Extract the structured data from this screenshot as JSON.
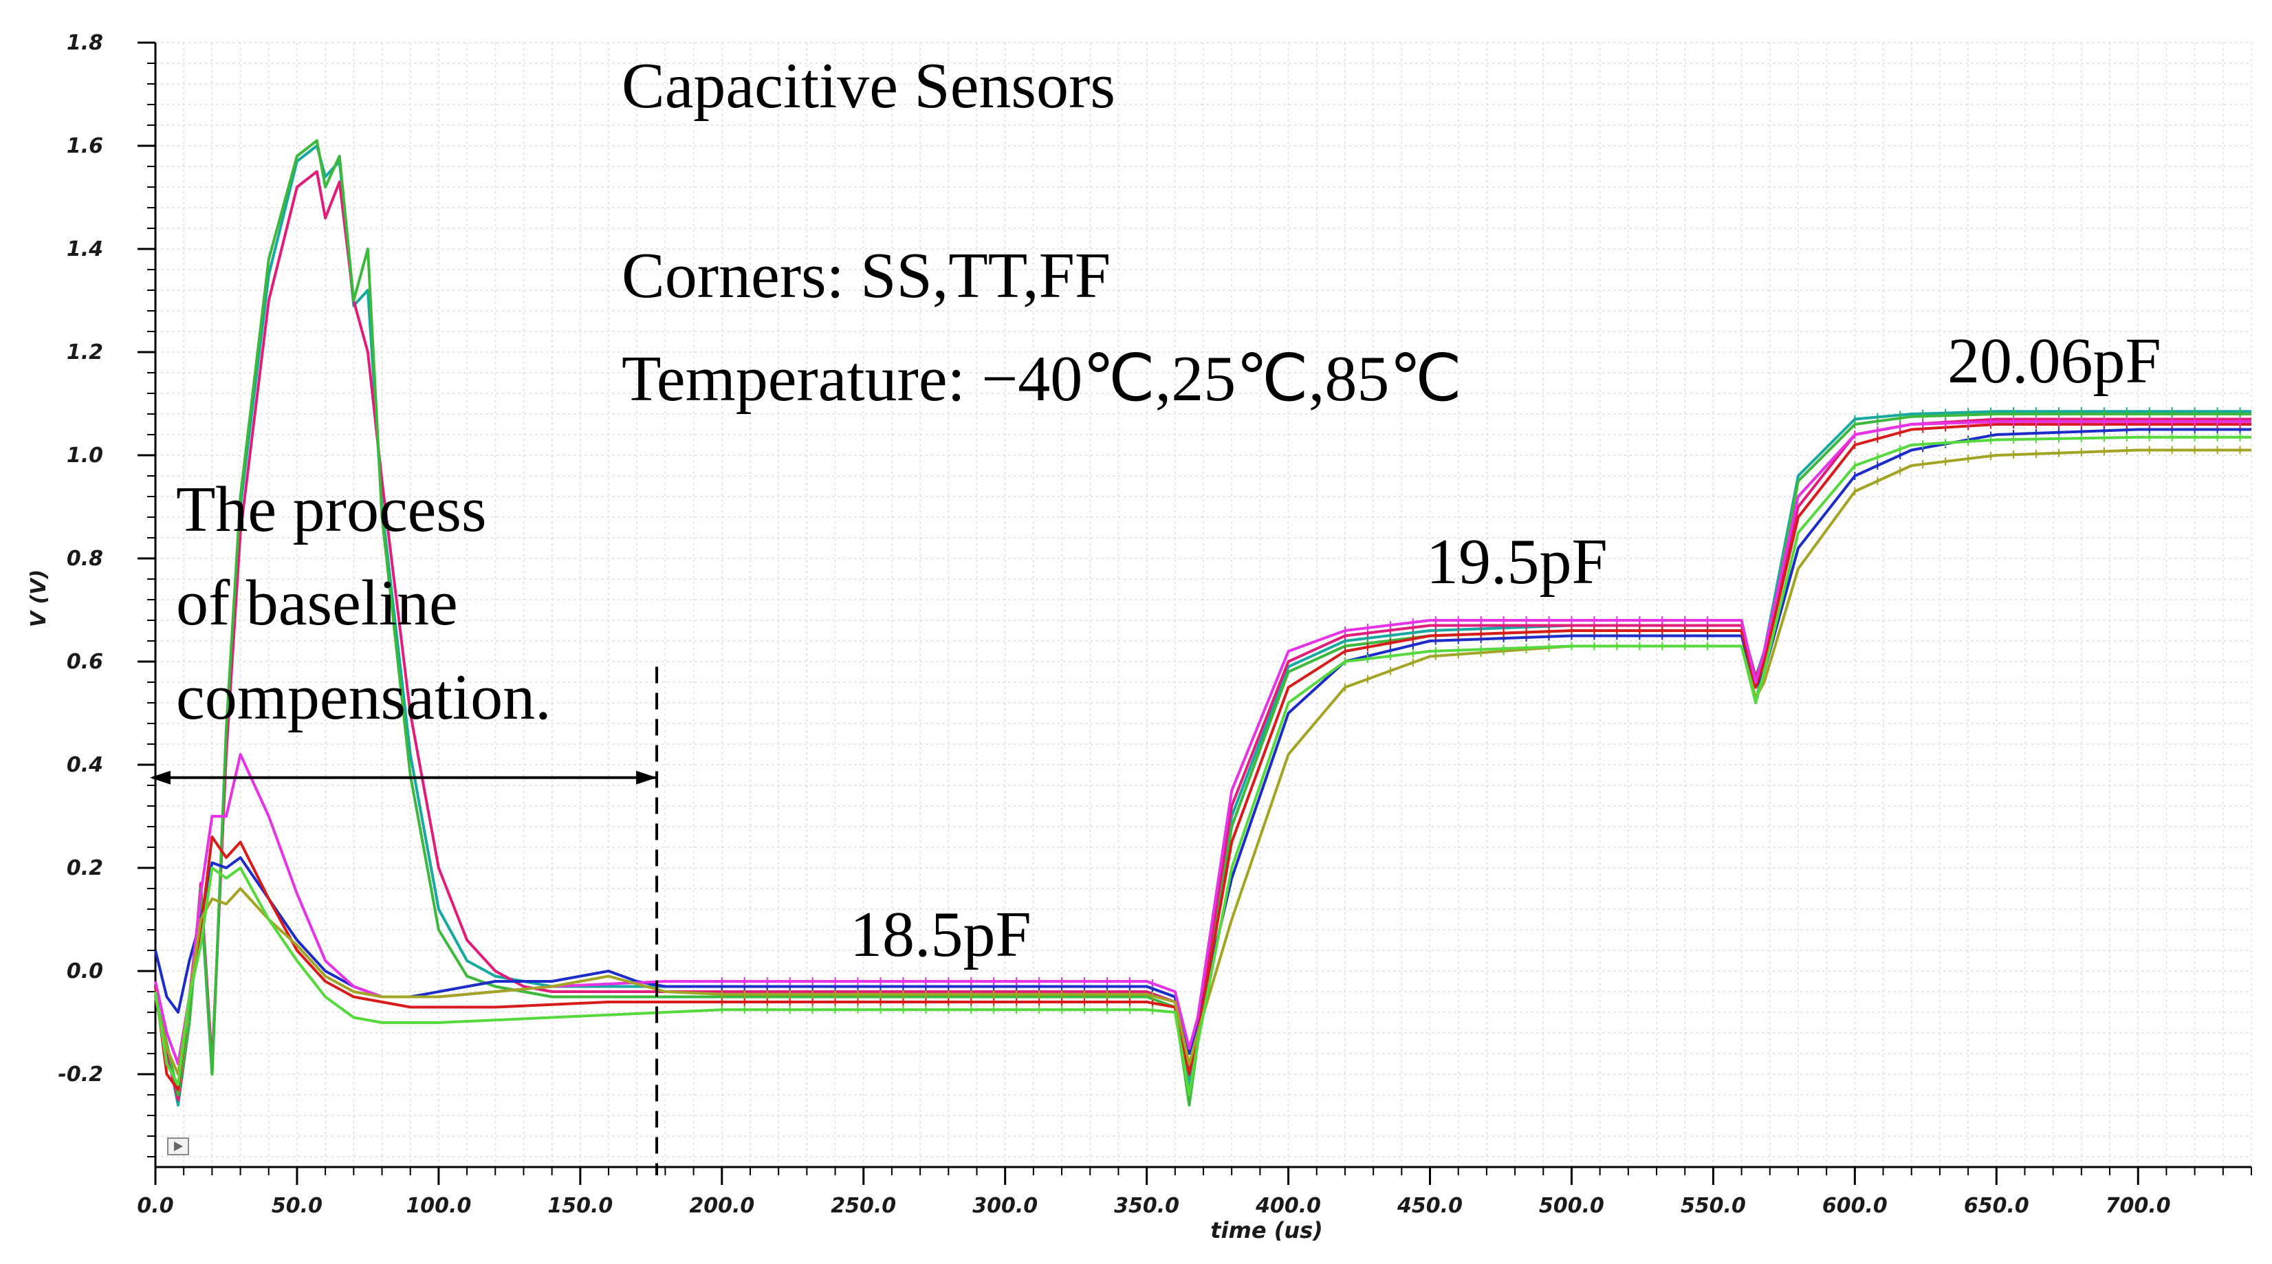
{
  "chart_data": {
    "type": "line",
    "title": "Capacitive Sensors",
    "title_color": "#c00000",
    "xlabel": "time (us)",
    "ylabel": "V (V)",
    "xlim": [
      0,
      740
    ],
    "ylim": [
      -0.38,
      1.8
    ],
    "x_ticks": [
      0,
      50,
      100,
      150,
      200,
      250,
      300,
      350,
      400,
      450,
      500,
      550,
      600,
      650,
      700
    ],
    "x_tick_labels": [
      "0.0",
      "50.0",
      "100.0",
      "150.0",
      "200.0",
      "250.0",
      "300.0",
      "350.0",
      "400.0",
      "450.0",
      "500.0",
      "550.0",
      "600.0",
      "650.0",
      "700.0"
    ],
    "y_ticks": [
      1.8,
      1.6,
      1.4,
      1.2,
      1.0,
      0.8,
      0.6,
      0.4,
      0.2,
      0.0,
      -0.2
    ],
    "y_tick_labels": [
      "1.8",
      "1.6",
      "1.4",
      "1.2",
      "1.0",
      "0.8",
      "0.6",
      "0.4",
      "0.2",
      "0.0",
      "-0.2"
    ],
    "grid": true,
    "annotations": {
      "corners": "Corners: SS,TT,FF",
      "temperature": "Temperature: −40℃,25℃,85℃",
      "baseline_1": "The process",
      "baseline_2": "of baseline",
      "baseline_3": "compensation.",
      "label_185": "18.5pF",
      "label_195": "19.5pF",
      "label_2006": "20.06pF"
    },
    "baseline_marker_x": 177,
    "baseline_arrow_y": 0.375,
    "series": [
      {
        "color": "#17a9a0",
        "x": [
          0,
          4,
          8,
          12,
          16,
          20,
          25,
          30,
          40,
          50,
          57,
          60,
          65,
          70,
          75,
          80,
          90,
          100,
          110,
          120,
          130,
          140,
          150,
          160,
          170,
          180,
          200,
          250,
          300,
          350,
          360,
          365,
          368,
          380,
          400,
          420,
          450,
          500,
          550,
          560,
          565,
          568,
          580,
          600,
          620,
          650,
          700,
          740
        ],
        "y": [
          -0.05,
          -0.15,
          -0.26,
          -0.1,
          0.15,
          -0.2,
          0.45,
          0.9,
          1.35,
          1.57,
          1.6,
          1.54,
          1.57,
          1.29,
          1.32,
          0.9,
          0.42,
          0.12,
          0.02,
          -0.01,
          -0.02,
          -0.03,
          -0.03,
          -0.03,
          -0.03,
          -0.03,
          -0.03,
          -0.03,
          -0.03,
          -0.03,
          -0.05,
          -0.22,
          -0.12,
          0.3,
          0.59,
          0.64,
          0.66,
          0.67,
          0.67,
          0.67,
          0.57,
          0.62,
          0.96,
          1.07,
          1.08,
          1.085,
          1.085,
          1.085
        ]
      },
      {
        "color": "#e01d7a",
        "x": [
          0,
          4,
          8,
          12,
          16,
          20,
          25,
          30,
          40,
          50,
          57,
          60,
          65,
          70,
          75,
          80,
          90,
          100,
          110,
          120,
          130,
          140,
          150,
          160,
          170,
          180,
          200,
          250,
          300,
          350,
          360,
          365,
          368,
          380,
          400,
          420,
          450,
          500,
          550,
          560,
          565,
          568,
          580,
          600,
          620,
          650,
          700,
          740
        ],
        "y": [
          -0.05,
          -0.16,
          -0.25,
          -0.1,
          0.17,
          -0.18,
          0.42,
          0.85,
          1.3,
          1.52,
          1.55,
          1.46,
          1.53,
          1.3,
          1.2,
          0.95,
          0.5,
          0.2,
          0.06,
          0.0,
          -0.03,
          -0.04,
          -0.04,
          -0.04,
          -0.04,
          -0.04,
          -0.04,
          -0.04,
          -0.04,
          -0.04,
          -0.06,
          -0.2,
          -0.12,
          0.32,
          0.6,
          0.65,
          0.67,
          0.67,
          0.67,
          0.67,
          0.57,
          0.61,
          0.9,
          1.04,
          1.06,
          1.07,
          1.07,
          1.07
        ]
      },
      {
        "color": "#3cb83c",
        "x": [
          0,
          4,
          8,
          12,
          16,
          20,
          25,
          30,
          40,
          50,
          57,
          60,
          65,
          70,
          75,
          80,
          90,
          100,
          110,
          120,
          130,
          140,
          150,
          160,
          170,
          180,
          200,
          250,
          300,
          350,
          360,
          365,
          368,
          380,
          400,
          420,
          450,
          500,
          550,
          560,
          565,
          568,
          580,
          600,
          620,
          650,
          700,
          740
        ],
        "y": [
          -0.05,
          -0.14,
          -0.24,
          -0.1,
          0.16,
          -0.2,
          0.47,
          0.92,
          1.38,
          1.58,
          1.61,
          1.52,
          1.58,
          1.3,
          1.4,
          0.88,
          0.38,
          0.08,
          -0.01,
          -0.03,
          -0.04,
          -0.05,
          -0.05,
          -0.05,
          -0.05,
          -0.05,
          -0.05,
          -0.05,
          -0.05,
          -0.05,
          -0.07,
          -0.26,
          -0.14,
          0.28,
          0.58,
          0.63,
          0.65,
          0.66,
          0.66,
          0.66,
          0.52,
          0.6,
          0.95,
          1.06,
          1.075,
          1.08,
          1.08,
          1.08
        ]
      },
      {
        "color": "#1c2cc8",
        "x": [
          0,
          4,
          8,
          12,
          16,
          20,
          25,
          30,
          40,
          50,
          60,
          70,
          80,
          90,
          100,
          120,
          140,
          160,
          170,
          180,
          200,
          250,
          300,
          350,
          360,
          365,
          368,
          380,
          400,
          420,
          450,
          500,
          550,
          560,
          565,
          568,
          580,
          600,
          620,
          650,
          700,
          740
        ],
        "y": [
          0.04,
          -0.05,
          -0.08,
          0.02,
          0.1,
          0.21,
          0.2,
          0.22,
          0.14,
          0.06,
          0.0,
          -0.03,
          -0.05,
          -0.05,
          -0.04,
          -0.02,
          -0.02,
          0.0,
          -0.02,
          -0.03,
          -0.03,
          -0.03,
          -0.03,
          -0.03,
          -0.05,
          -0.16,
          -0.1,
          0.18,
          0.5,
          0.6,
          0.64,
          0.65,
          0.65,
          0.65,
          0.55,
          0.58,
          0.82,
          0.96,
          1.01,
          1.04,
          1.05,
          1.05
        ]
      },
      {
        "color": "#d81b1b",
        "x": [
          0,
          4,
          8,
          12,
          16,
          20,
          25,
          30,
          40,
          50,
          60,
          70,
          80,
          90,
          100,
          120,
          140,
          160,
          180,
          200,
          250,
          300,
          350,
          360,
          365,
          368,
          380,
          400,
          420,
          450,
          500,
          550,
          560,
          565,
          568,
          580,
          600,
          620,
          650,
          700,
          740
        ],
        "y": [
          -0.03,
          -0.2,
          -0.23,
          -0.05,
          0.08,
          0.26,
          0.22,
          0.25,
          0.14,
          0.04,
          -0.02,
          -0.05,
          -0.06,
          -0.07,
          -0.07,
          -0.07,
          -0.065,
          -0.06,
          -0.06,
          -0.06,
          -0.06,
          -0.06,
          -0.06,
          -0.07,
          -0.2,
          -0.12,
          0.25,
          0.55,
          0.62,
          0.65,
          0.66,
          0.66,
          0.66,
          0.55,
          0.6,
          0.88,
          1.02,
          1.05,
          1.06,
          1.06,
          1.06
        ]
      },
      {
        "color": "#e533e5",
        "x": [
          0,
          4,
          8,
          12,
          16,
          20,
          25,
          30,
          40,
          50,
          60,
          70,
          80,
          90,
          100,
          120,
          140,
          160,
          180,
          200,
          250,
          300,
          350,
          360,
          365,
          368,
          380,
          400,
          420,
          450,
          500,
          550,
          560,
          565,
          568,
          580,
          600,
          620,
          650,
          700,
          740
        ],
        "y": [
          -0.02,
          -0.12,
          -0.18,
          -0.05,
          0.15,
          0.3,
          0.3,
          0.42,
          0.3,
          0.15,
          0.02,
          -0.03,
          -0.05,
          -0.05,
          -0.05,
          -0.04,
          -0.03,
          -0.025,
          -0.02,
          -0.02,
          -0.02,
          -0.02,
          -0.02,
          -0.04,
          -0.15,
          -0.09,
          0.35,
          0.62,
          0.66,
          0.68,
          0.68,
          0.68,
          0.68,
          0.56,
          0.62,
          0.92,
          1.04,
          1.06,
          1.065,
          1.065,
          1.065
        ]
      },
      {
        "color": "#a3a324",
        "x": [
          0,
          4,
          8,
          12,
          16,
          20,
          25,
          30,
          40,
          50,
          60,
          70,
          80,
          90,
          100,
          120,
          140,
          160,
          180,
          200,
          250,
          300,
          350,
          360,
          365,
          368,
          380,
          400,
          420,
          450,
          500,
          550,
          560,
          565,
          568,
          580,
          600,
          620,
          650,
          700,
          740
        ],
        "y": [
          -0.05,
          -0.15,
          -0.2,
          -0.05,
          0.1,
          0.14,
          0.13,
          0.16,
          0.1,
          0.05,
          -0.01,
          -0.04,
          -0.05,
          -0.05,
          -0.05,
          -0.04,
          -0.03,
          -0.01,
          -0.04,
          -0.045,
          -0.045,
          -0.045,
          -0.045,
          -0.06,
          -0.18,
          -0.12,
          0.1,
          0.42,
          0.55,
          0.61,
          0.63,
          0.63,
          0.63,
          0.53,
          0.56,
          0.78,
          0.93,
          0.98,
          1.0,
          1.01,
          1.01
        ]
      },
      {
        "color": "#55d93d",
        "x": [
          0,
          4,
          8,
          12,
          16,
          20,
          25,
          30,
          40,
          50,
          60,
          70,
          80,
          90,
          100,
          120,
          140,
          160,
          180,
          200,
          250,
          300,
          350,
          360,
          365,
          368,
          380,
          400,
          420,
          450,
          500,
          550,
          560,
          565,
          568,
          580,
          600,
          620,
          650,
          700,
          740
        ],
        "y": [
          -0.04,
          -0.18,
          -0.22,
          -0.05,
          0.05,
          0.2,
          0.18,
          0.2,
          0.1,
          0.02,
          -0.05,
          -0.09,
          -0.1,
          -0.1,
          -0.1,
          -0.095,
          -0.09,
          -0.085,
          -0.08,
          -0.075,
          -0.075,
          -0.075,
          -0.075,
          -0.08,
          -0.24,
          -0.14,
          0.2,
          0.52,
          0.6,
          0.62,
          0.63,
          0.63,
          0.63,
          0.52,
          0.58,
          0.85,
          0.98,
          1.02,
          1.03,
          1.035,
          1.035
        ]
      }
    ]
  }
}
